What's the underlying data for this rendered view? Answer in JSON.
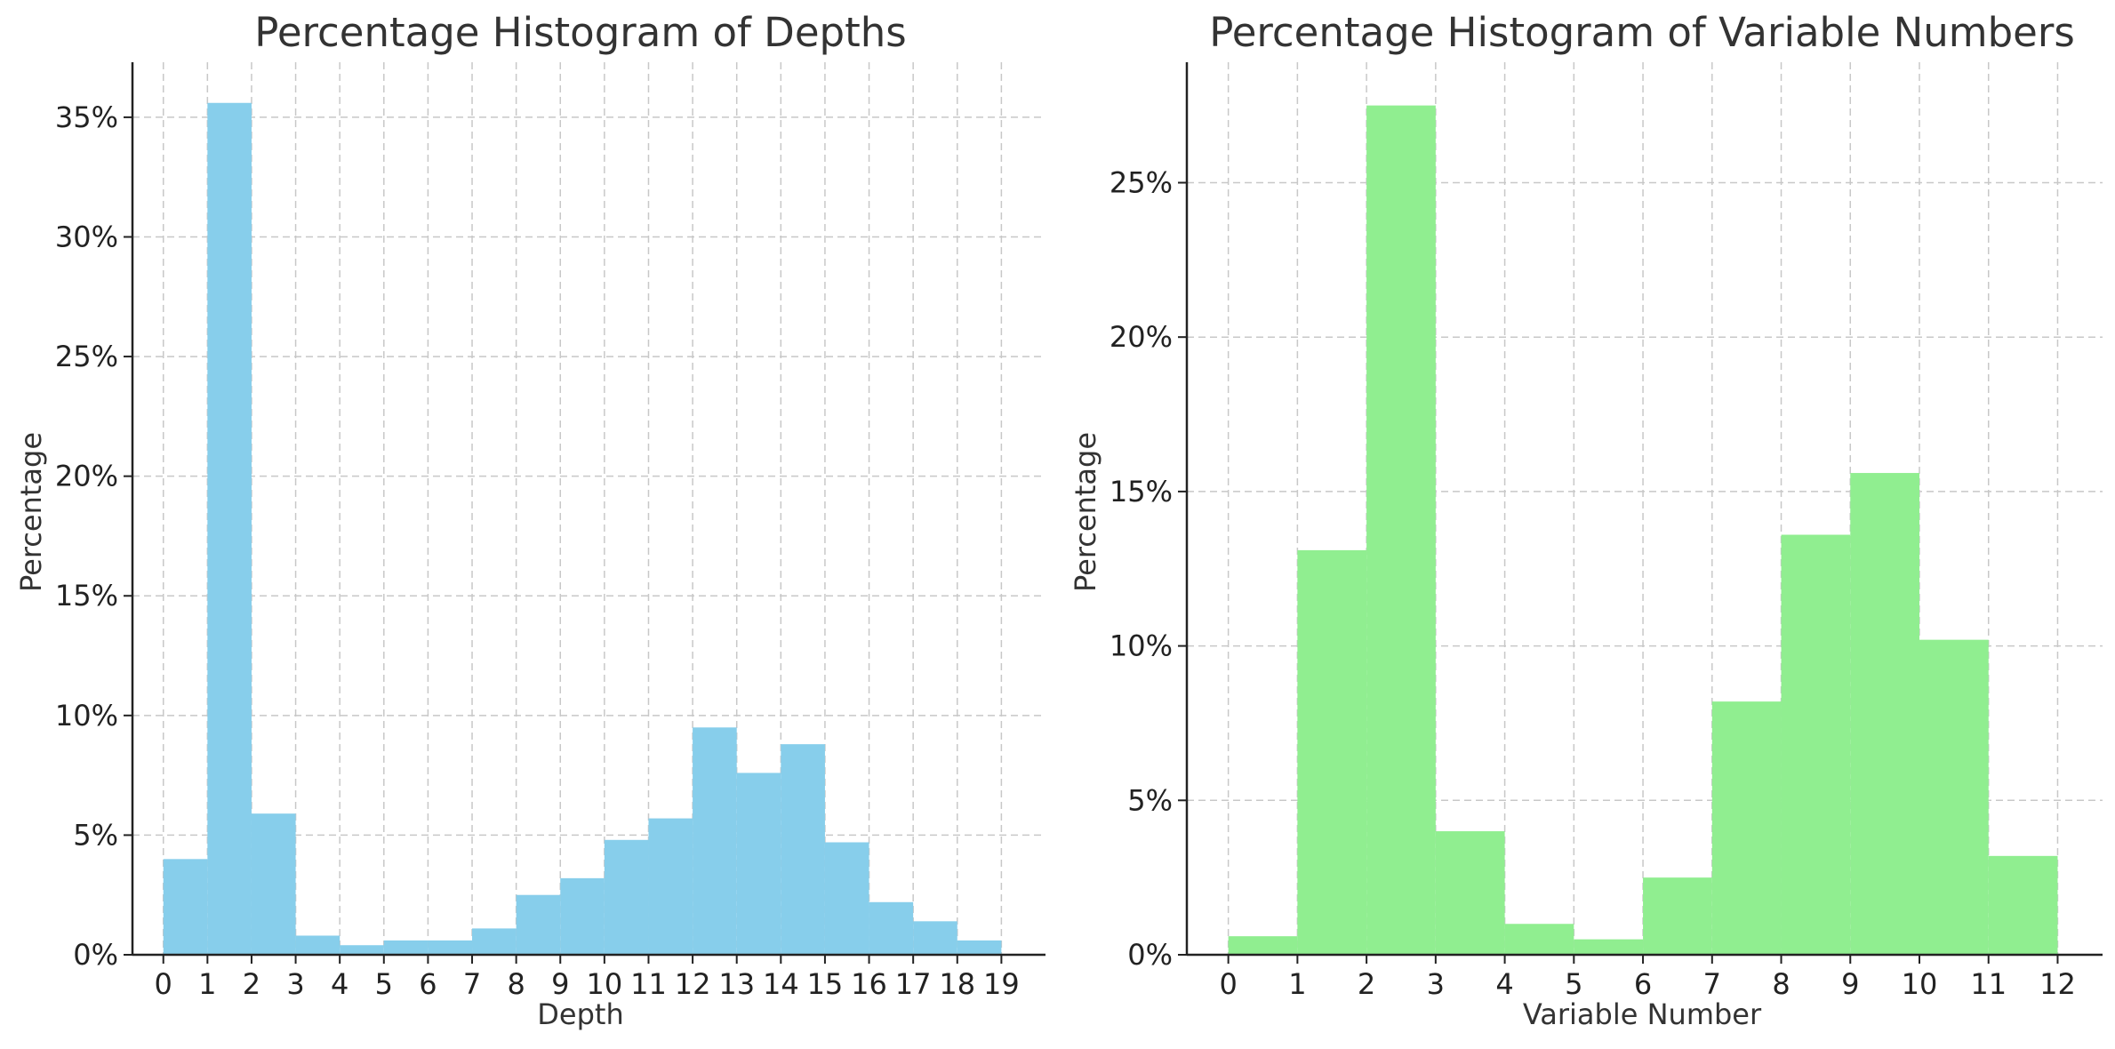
{
  "chart_data": [
    {
      "type": "bar",
      "title": "Percentage Histogram of Depths",
      "xlabel": "Depth",
      "ylabel": "Percentage",
      "bin_edges": [
        0,
        1,
        2,
        3,
        4,
        5,
        6,
        7,
        8,
        9,
        10,
        11,
        12,
        13,
        14,
        15,
        16,
        17,
        18,
        19
      ],
      "values": [
        4.0,
        35.6,
        5.9,
        0.8,
        0.4,
        0.6,
        0.6,
        1.1,
        2.5,
        3.2,
        4.8,
        5.7,
        9.5,
        7.6,
        8.8,
        4.7,
        2.2,
        1.4,
        0.6
      ],
      "xticks": [
        "0",
        "1",
        "2",
        "3",
        "4",
        "5",
        "6",
        "7",
        "8",
        "9",
        "10",
        "11",
        "12",
        "13",
        "14",
        "15",
        "16",
        "17",
        "18",
        "19"
      ],
      "yticks": [
        0,
        5,
        10,
        15,
        20,
        25,
        30,
        35
      ],
      "ytick_labels": [
        "0%",
        "5%",
        "10%",
        "15%",
        "20%",
        "25%",
        "30%",
        "35%"
      ],
      "xlim": [
        -0.7,
        20.0
      ],
      "ylim": [
        0,
        37.3
      ],
      "grid": true,
      "color": "#87ceeb"
    },
    {
      "type": "bar",
      "title": "Percentage Histogram of Variable Numbers",
      "xlabel": "Variable Number",
      "ylabel": "Percentage",
      "bin_edges": [
        0,
        1,
        2,
        3,
        4,
        5,
        6,
        7,
        8,
        9,
        10,
        11,
        12
      ],
      "values": [
        0.6,
        13.1,
        27.5,
        4.0,
        1.0,
        0.5,
        2.5,
        8.2,
        13.6,
        15.6,
        10.2,
        3.2
      ],
      "xticks": [
        "0",
        "1",
        "2",
        "3",
        "4",
        "5",
        "6",
        "7",
        "8",
        "9",
        "10",
        "11",
        "12"
      ],
      "yticks": [
        0,
        5,
        10,
        15,
        20,
        25
      ],
      "ytick_labels": [
        "0%",
        "5%",
        "10%",
        "15%",
        "20%",
        "25%"
      ],
      "xlim": [
        -0.6,
        12.65
      ],
      "ylim": [
        0,
        28.9
      ],
      "grid": true,
      "color": "#90ee90"
    }
  ]
}
